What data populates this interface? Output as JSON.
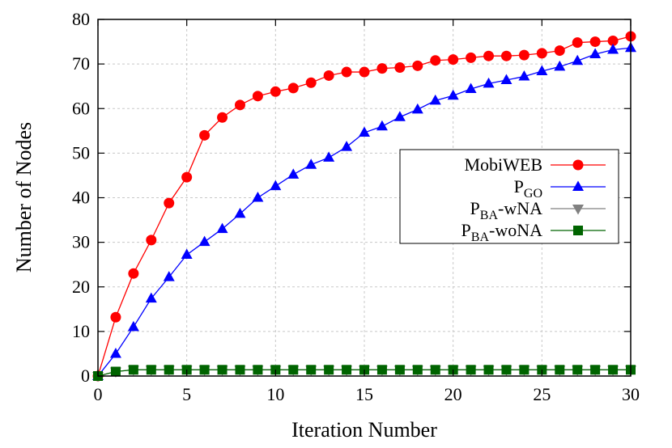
{
  "chart_data": {
    "type": "line",
    "xlabel": "Iteration Number",
    "ylabel": "Number of Nodes",
    "xlim": [
      0,
      30
    ],
    "ylim": [
      0,
      80
    ],
    "xticks": [
      0,
      5,
      10,
      15,
      20,
      25,
      30
    ],
    "yticks": [
      0,
      10,
      20,
      30,
      40,
      50,
      60,
      70,
      80
    ],
    "grid": true,
    "legend_position": "right",
    "series": [
      {
        "name": "MobiWEB",
        "name_main": "MobiWEB",
        "name_sub": "",
        "name_suffix": "",
        "color": "#ff0000",
        "marker": "circle",
        "x": [
          0,
          1,
          2,
          3,
          4,
          5,
          6,
          7,
          8,
          9,
          10,
          11,
          12,
          13,
          14,
          15,
          16,
          17,
          18,
          19,
          20,
          21,
          22,
          23,
          24,
          25,
          26,
          27,
          28,
          29,
          30
        ],
        "values": [
          0,
          13.2,
          23,
          30.5,
          38.8,
          44.6,
          54,
          58,
          60.8,
          62.8,
          63.8,
          64.6,
          65.8,
          67.4,
          68.2,
          68.2,
          69,
          69.2,
          69.6,
          70.8,
          71,
          71.4,
          71.8,
          71.8,
          72,
          72.4,
          73,
          74.8,
          75,
          75.2,
          76.2
        ]
      },
      {
        "name": "PGO",
        "name_main": "P",
        "name_sub": "GO",
        "name_suffix": "",
        "color": "#0000ff",
        "marker": "triangle-up",
        "x": [
          0,
          1,
          2,
          3,
          4,
          5,
          6,
          7,
          8,
          9,
          10,
          11,
          12,
          13,
          14,
          15,
          16,
          17,
          18,
          19,
          20,
          21,
          22,
          23,
          24,
          25,
          26,
          27,
          28,
          29,
          30
        ],
        "values": [
          0,
          5,
          11,
          17.4,
          22.2,
          27.2,
          30.1,
          33,
          36.4,
          40,
          42.6,
          45.2,
          47.4,
          49,
          51.4,
          54.6,
          56,
          58.1,
          59.8,
          61.8,
          62.9,
          64.4,
          65.6,
          66.4,
          67.2,
          68.4,
          69.4,
          70.7,
          72.2,
          73.2,
          73.6
        ]
      },
      {
        "name": "PBA-wNA",
        "name_main": "P",
        "name_sub": "BA",
        "name_suffix": "-wNA",
        "color": "#808080",
        "marker": "triangle-down",
        "x": [
          0,
          1,
          2,
          3,
          4,
          5,
          6,
          7,
          8,
          9,
          10,
          11,
          12,
          13,
          14,
          15,
          16,
          17,
          18,
          19,
          20,
          21,
          22,
          23,
          24,
          25,
          26,
          27,
          28,
          29,
          30
        ],
        "values": [
          0,
          1,
          1.4,
          1.4,
          1.4,
          1.4,
          1.4,
          1.4,
          1.4,
          1.4,
          1.4,
          1.4,
          1.4,
          1.4,
          1.4,
          1.4,
          1.4,
          1.4,
          1.4,
          1.4,
          1.4,
          1.4,
          1.4,
          1.4,
          1.4,
          1.4,
          1.4,
          1.4,
          1.4,
          1.4,
          1.4
        ]
      },
      {
        "name": "PBA-woNA",
        "name_main": "P",
        "name_sub": "BA",
        "name_suffix": "-woNA",
        "color": "#006400",
        "marker": "square",
        "x": [
          0,
          1,
          2,
          3,
          4,
          5,
          6,
          7,
          8,
          9,
          10,
          11,
          12,
          13,
          14,
          15,
          16,
          17,
          18,
          19,
          20,
          21,
          22,
          23,
          24,
          25,
          26,
          27,
          28,
          29,
          30
        ],
        "values": [
          0,
          1,
          1.4,
          1.4,
          1.4,
          1.4,
          1.4,
          1.4,
          1.4,
          1.4,
          1.4,
          1.4,
          1.4,
          1.4,
          1.4,
          1.4,
          1.4,
          1.4,
          1.4,
          1.4,
          1.4,
          1.4,
          1.4,
          1.4,
          1.4,
          1.4,
          1.4,
          1.4,
          1.4,
          1.4,
          1.4
        ]
      }
    ]
  }
}
